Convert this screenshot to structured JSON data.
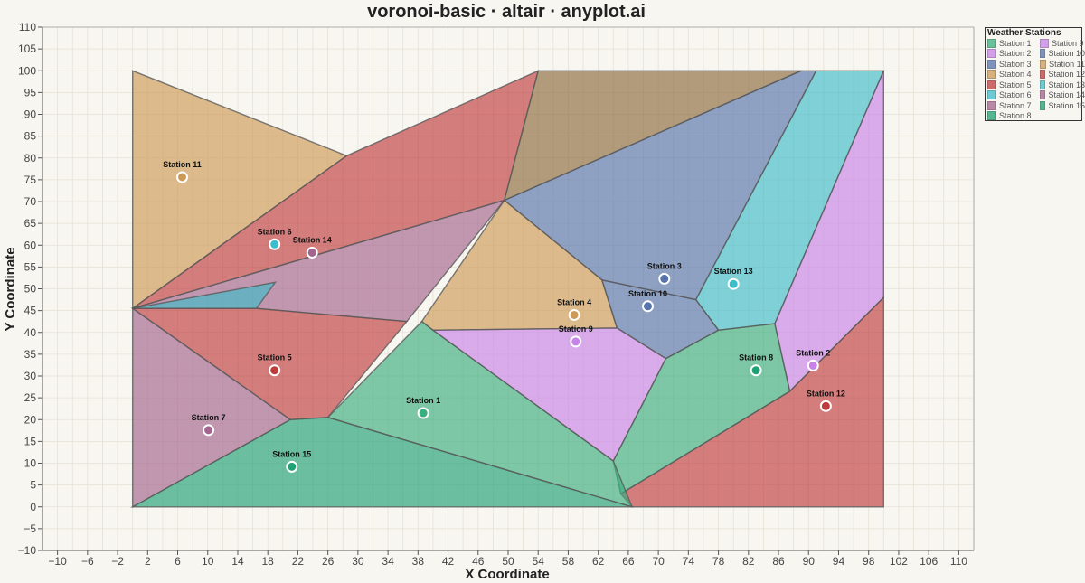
{
  "title": "voronoi-basic · altair · anyplot.ai",
  "chart_data": {
    "type": "voronoi",
    "title": "voronoi-basic · altair · anyplot.ai",
    "xlabel": "X Coordinate",
    "ylabel": "Y Coordinate",
    "xlim": [
      -12,
      112
    ],
    "ylim": [
      -10,
      110
    ],
    "x_ticks": [
      -10,
      -6,
      -2,
      2,
      6,
      10,
      14,
      18,
      22,
      26,
      30,
      34,
      38,
      42,
      46,
      50,
      54,
      58,
      62,
      66,
      70,
      74,
      78,
      82,
      86,
      90,
      94,
      98,
      102,
      106,
      110
    ],
    "y_ticks": [
      -10,
      -5,
      0,
      5,
      10,
      15,
      20,
      25,
      30,
      35,
      40,
      45,
      50,
      55,
      60,
      65,
      70,
      75,
      80,
      85,
      90,
      95,
      100,
      105,
      110
    ],
    "grid": true,
    "legend_title": "Weather Stations",
    "legend_placement": "top-right",
    "stations": [
      {
        "name": "Station 1",
        "x": 38.7,
        "y": 21.5,
        "color": "#3aae7e"
      },
      {
        "name": "Station 2",
        "x": 90.6,
        "y": 32.4,
        "color": "#c883e8"
      },
      {
        "name": "Station 3",
        "x": 70.8,
        "y": 52.3,
        "color": "#5673ab"
      },
      {
        "name": "Station 4",
        "x": 58.8,
        "y": 44.0,
        "color": "#cc9a55"
      },
      {
        "name": "Station 5",
        "x": 18.9,
        "y": 31.3,
        "color": "#bf3c3d"
      },
      {
        "name": "Station 6",
        "x": 18.9,
        "y": 60.2,
        "color": "#3dbcc9"
      },
      {
        "name": "Station 7",
        "x": 10.1,
        "y": 17.6,
        "color": "#a3648e"
      },
      {
        "name": "Station 8",
        "x": 83.0,
        "y": 31.3,
        "color": "#1fa175"
      },
      {
        "name": "Station 9",
        "x": 59.0,
        "y": 37.9,
        "color": "#c883e8"
      },
      {
        "name": "Station 10",
        "x": 68.6,
        "y": 46.0,
        "color": "#5673ab"
      },
      {
        "name": "Station 11",
        "x": 6.6,
        "y": 75.6,
        "color": "#cc9a55"
      },
      {
        "name": "Station 12",
        "x": 92.3,
        "y": 23.1,
        "color": "#bf3c3d"
      },
      {
        "name": "Station 13",
        "x": 80.0,
        "y": 51.1,
        "color": "#3dbcc9"
      },
      {
        "name": "Station 14",
        "x": 23.9,
        "y": 58.3,
        "color": "#a3648e"
      },
      {
        "name": "Station 15",
        "x": 21.2,
        "y": 9.2,
        "color": "#1fa175"
      }
    ],
    "cells": [
      {
        "color": "#cc9a55",
        "points": [
          [
            0,
            100
          ],
          [
            28.5,
            80.5
          ],
          [
            0,
            45.5
          ]
        ]
      },
      {
        "color": "#bf3c3d",
        "points": [
          [
            28.5,
            80.5
          ],
          [
            54,
            100
          ],
          [
            49.5,
            70.3
          ],
          [
            0,
            45.5
          ]
        ]
      },
      {
        "color": "#8b6a3c",
        "points": [
          [
            54,
            100
          ],
          [
            89,
            100
          ],
          [
            49.5,
            70.3
          ]
        ]
      },
      {
        "color": "#5673ab",
        "points": [
          [
            89,
            100
          ],
          [
            91,
            100
          ],
          [
            75,
            47.5
          ],
          [
            62.5,
            52
          ],
          [
            49.5,
            70.3
          ]
        ]
      },
      {
        "color": "#3dbcc9",
        "points": [
          [
            91,
            100
          ],
          [
            100,
            100
          ],
          [
            85.5,
            42
          ],
          [
            78,
            40.5
          ],
          [
            75,
            47.5
          ]
        ]
      },
      {
        "color": "#c883e8",
        "points": [
          [
            100,
            100
          ],
          [
            100,
            48
          ],
          [
            87.5,
            26.5
          ],
          [
            85.5,
            42
          ]
        ]
      },
      {
        "color": "#bf3c3d",
        "points": [
          [
            100,
            48
          ],
          [
            100,
            0
          ],
          [
            66.5,
            0
          ],
          [
            65,
            3
          ],
          [
            87.5,
            26.5
          ]
        ]
      },
      {
        "color": "#a3648e",
        "points": [
          [
            0,
            45.5
          ],
          [
            16.5,
            45.5
          ],
          [
            36.5,
            42.5
          ],
          [
            49.5,
            70.3
          ]
        ]
      },
      {
        "color": "#3dbcc9",
        "points": [
          [
            0,
            45.5
          ],
          [
            16.5,
            45.5
          ],
          [
            19,
            51.5
          ]
        ]
      },
      {
        "color": "#bf3c3d",
        "points": [
          [
            0,
            45.5
          ],
          [
            16.5,
            45.5
          ],
          [
            36.5,
            42.5
          ],
          [
            26,
            20.5
          ],
          [
            21,
            20
          ]
        ]
      },
      {
        "color": "#a3648e",
        "points": [
          [
            0,
            45.5
          ],
          [
            21,
            20
          ],
          [
            0,
            0
          ]
        ]
      },
      {
        "color": "#cc9a55",
        "points": [
          [
            49.5,
            70.3
          ],
          [
            62.5,
            52
          ],
          [
            64.5,
            41
          ],
          [
            40,
            40.5
          ],
          [
            38.5,
            42.5
          ]
        ]
      },
      {
        "color": "#5673ab",
        "points": [
          [
            62.5,
            52
          ],
          [
            75,
            47.5
          ],
          [
            78,
            40.5
          ],
          [
            71,
            34
          ],
          [
            64.5,
            41
          ]
        ]
      },
      {
        "color": "#c883e8",
        "points": [
          [
            40,
            40.5
          ],
          [
            64.5,
            41
          ],
          [
            71,
            34
          ],
          [
            64,
            10.5
          ]
        ]
      },
      {
        "color": "#3aae7e",
        "points": [
          [
            78,
            40.5
          ],
          [
            85.5,
            42
          ],
          [
            87.5,
            26.5
          ],
          [
            65,
            3
          ],
          [
            64,
            10.5
          ],
          [
            71,
            34
          ]
        ]
      },
      {
        "color": "#3aae7e",
        "points": [
          [
            26,
            20.5
          ],
          [
            38.5,
            42.5
          ],
          [
            40,
            40.5
          ],
          [
            64,
            10.5
          ],
          [
            66.5,
            0
          ]
        ]
      },
      {
        "color": "#1fa175",
        "points": [
          [
            0,
            0
          ],
          [
            21,
            20
          ],
          [
            26,
            20.5
          ],
          [
            66.5,
            0
          ]
        ]
      }
    ]
  }
}
